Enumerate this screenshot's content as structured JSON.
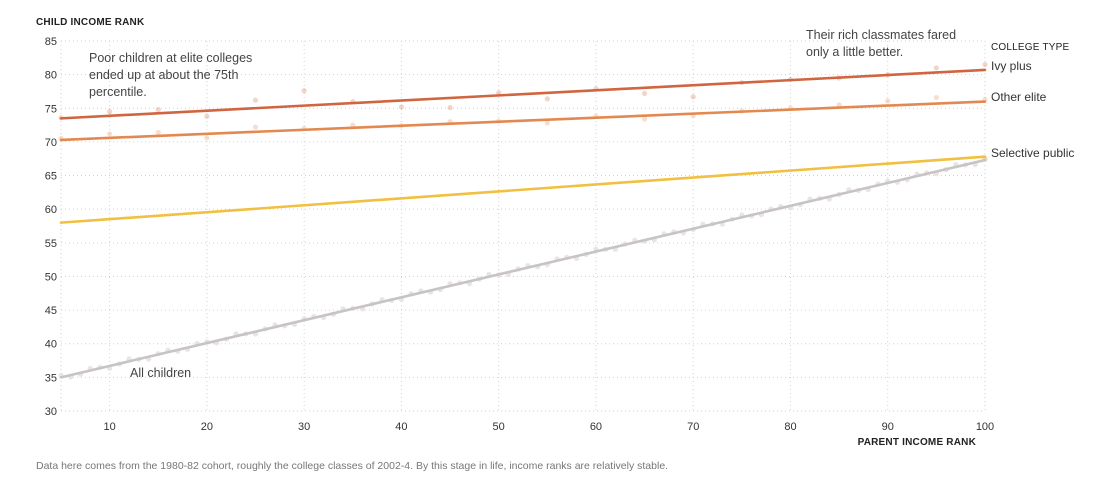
{
  "chart_data": {
    "type": "line",
    "title": "",
    "ylabel": "CHILD INCOME RANK",
    "xlabel": "PARENT INCOME RANK",
    "xlim": [
      5,
      100
    ],
    "ylim": [
      30,
      85
    ],
    "x_ticks": [
      10,
      20,
      30,
      40,
      50,
      60,
      70,
      80,
      90,
      100
    ],
    "y_ticks": [
      30,
      35,
      40,
      45,
      50,
      55,
      60,
      65,
      70,
      75,
      80,
      85
    ],
    "legend_title": "COLLEGE TYPE",
    "series": [
      {
        "name": "Ivy plus",
        "color": "#d0653f",
        "line": [
          [
            5,
            73.5
          ],
          [
            100,
            80.7
          ]
        ],
        "points": [
          [
            5,
            73.6
          ],
          [
            10,
            74.5
          ],
          [
            15,
            74.8
          ],
          [
            20,
            73.8
          ],
          [
            25,
            76.2
          ],
          [
            30,
            77.6
          ],
          [
            35,
            76.0
          ],
          [
            40,
            75.2
          ],
          [
            45,
            75.1
          ],
          [
            50,
            77.3
          ],
          [
            55,
            76.4
          ],
          [
            60,
            77.9
          ],
          [
            65,
            77.2
          ],
          [
            70,
            76.7
          ],
          [
            75,
            78.8
          ],
          [
            80,
            79.3
          ],
          [
            85,
            79.5
          ],
          [
            90,
            80.0
          ],
          [
            95,
            81.0
          ],
          [
            100,
            81.5
          ]
        ]
      },
      {
        "name": "Other elite",
        "color": "#e3894f",
        "line": [
          [
            5,
            70.3
          ],
          [
            100,
            76.0
          ]
        ],
        "points": [
          [
            5,
            70.5
          ],
          [
            10,
            71.2
          ],
          [
            15,
            71.4
          ],
          [
            20,
            70.6
          ],
          [
            25,
            72.2
          ],
          [
            30,
            72.0
          ],
          [
            35,
            72.5
          ],
          [
            40,
            72.4
          ],
          [
            45,
            73.0
          ],
          [
            50,
            73.1
          ],
          [
            55,
            72.8
          ],
          [
            60,
            73.8
          ],
          [
            65,
            73.4
          ],
          [
            70,
            73.9
          ],
          [
            75,
            74.6
          ],
          [
            80,
            75.0
          ],
          [
            85,
            75.5
          ],
          [
            90,
            76.1
          ],
          [
            95,
            76.6
          ],
          [
            100,
            76.3
          ]
        ]
      },
      {
        "name": "Selective public",
        "color": "#f1c040",
        "line": [
          [
            5,
            58.0
          ],
          [
            100,
            67.8
          ]
        ],
        "points": [
          [
            100,
            67.5
          ]
        ]
      },
      {
        "name": "All children",
        "color": "#c9c4c4",
        "line": [
          [
            5,
            35.0
          ],
          [
            100,
            67.3
          ]
        ],
        "points": []
      }
    ],
    "annotations": {
      "poor_children": [
        "Poor children at elite colleges",
        "ended up at about the 75th",
        "percentile."
      ],
      "rich_classmates": [
        "Their rich classmates fared",
        "only a little better."
      ],
      "all_children_label": "All children"
    },
    "note": "Data here comes from the 1980-82 cohort, roughly the college classes of 2002-4. By this stage in life, income ranks are relatively stable."
  }
}
